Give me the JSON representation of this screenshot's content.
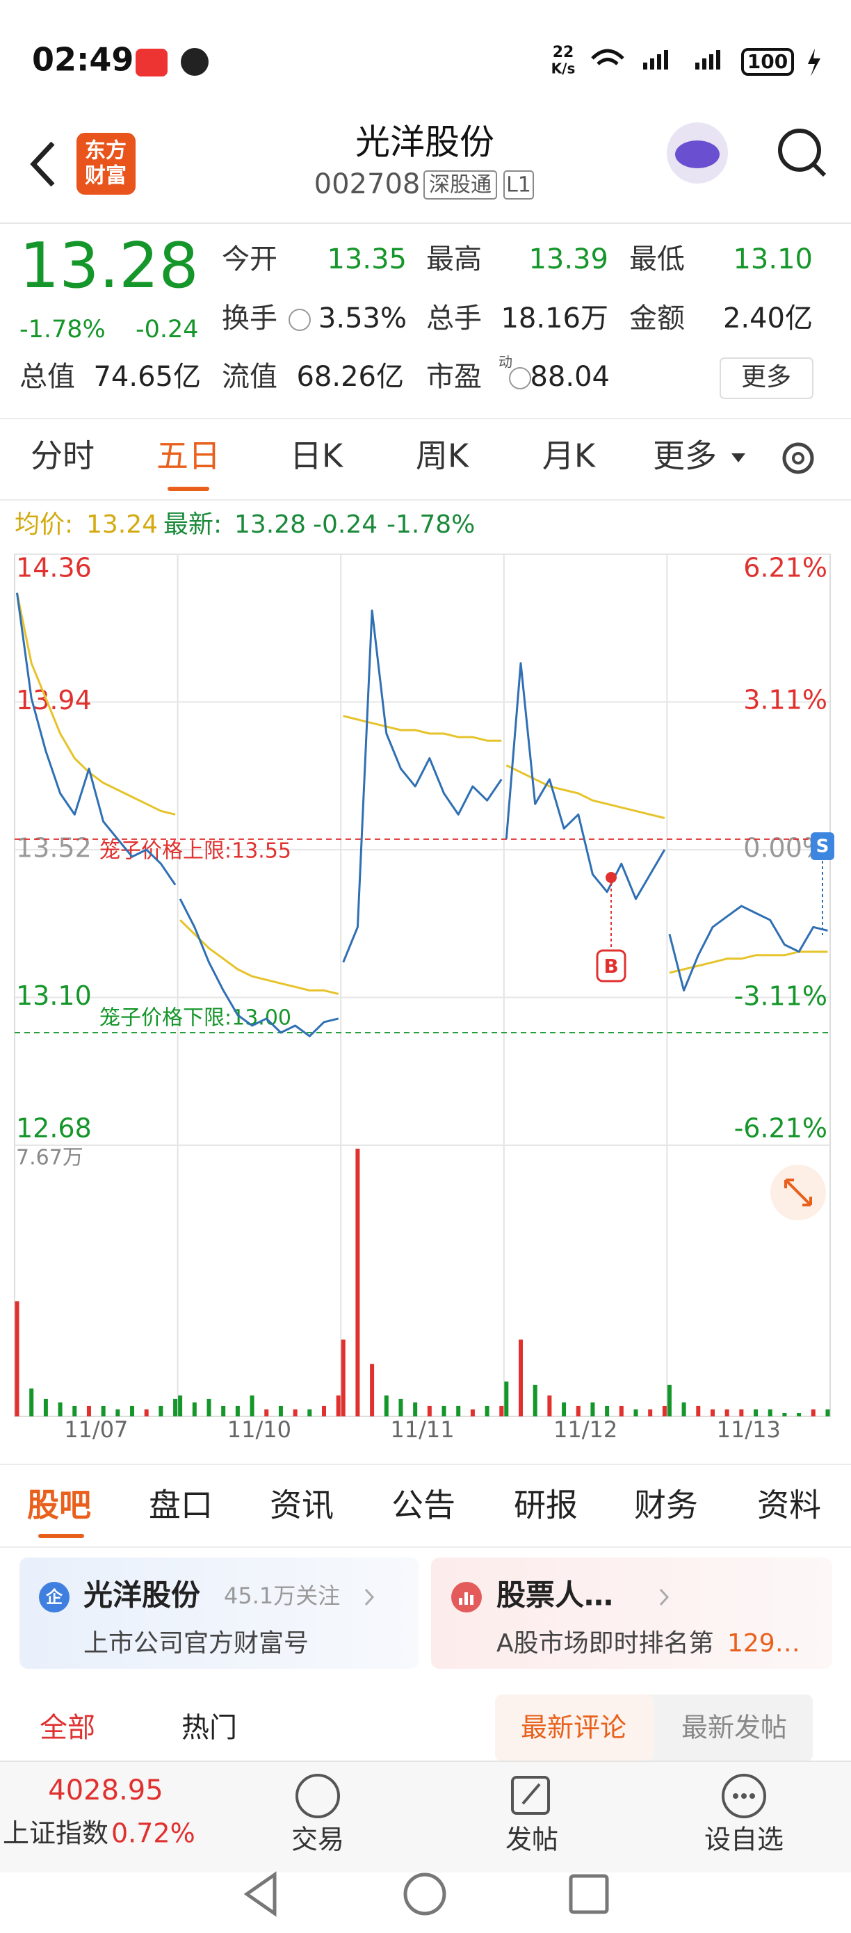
{
  "status": {
    "time": "02:49",
    "speed": "22",
    "speed_unit": "K/s",
    "battery": "100"
  },
  "header": {
    "logo": [
      "东方",
      "财富"
    ],
    "title": "光洋股份",
    "code": "002708",
    "tags": [
      "深股通",
      "L1"
    ]
  },
  "quote": {
    "price": "13.28",
    "change_pct": "-1.78%",
    "change": "-0.24",
    "stats": [
      [
        [
          "今开",
          "13.35"
        ],
        [
          "最高",
          "13.39"
        ],
        [
          "最低",
          "13.10"
        ]
      ],
      [
        [
          "换手",
          "3.53%"
        ],
        [
          "总手",
          "18.16万"
        ],
        [
          "金额",
          "2.40亿"
        ]
      ],
      [
        [
          "总值",
          "74.65亿"
        ],
        [
          "流值",
          "68.26亿"
        ],
        [
          "市盈",
          "88.04"
        ]
      ]
    ],
    "pe_sup": "动",
    "more": "更多"
  },
  "period_tabs": [
    "分时",
    "五日",
    "日K",
    "周K",
    "月K",
    "更多"
  ],
  "legend": {
    "avg_label": "均价:",
    "avg": "13.24",
    "latest_label": "最新:",
    "latest": "13.28",
    "change": "-0.24",
    "change_pct": "-1.78%"
  },
  "chart_data": {
    "type": "line",
    "categories": [
      "11/07",
      "11/10",
      "11/11",
      "11/12",
      "11/13"
    ],
    "ylim": [
      12.68,
      14.36
    ],
    "yticks": [
      14.36,
      13.94,
      13.52,
      {
        "value": 13.1,
        "label": "13.10"
      },
      12.68
    ],
    "ytick_colors": [
      "#e0312f",
      "#e0312f",
      "#999999",
      "#15962a",
      "#15962a"
    ],
    "y2lim": [
      -6.21,
      6.21
    ],
    "y2ticks": [
      {
        "value": 6.21,
        "label": "6.21%"
      },
      {
        "value": 3.11,
        "label": "3.11%"
      },
      {
        "value": 0,
        "label": "0.00%"
      },
      {
        "value": -3.11,
        "label": "-3.11%"
      },
      {
        "value": -6.21,
        "label": "-6.21%"
      }
    ],
    "limits": [
      {
        "label": "笼子价格上限:13.55",
        "value": 13.55,
        "color": "#e0312f"
      },
      {
        "label": "笼子价格下限:13.00",
        "value": 13.0,
        "color": "#15962a"
      }
    ],
    "price_color": "#2f6fb3",
    "avg_color": "#e6c32a",
    "price": [
      [
        14.25,
        13.95,
        13.8,
        13.68,
        13.62,
        13.75,
        13.6,
        13.55,
        13.5,
        13.52,
        13.48,
        13.42
      ],
      [
        13.38,
        13.3,
        13.2,
        13.12,
        13.05,
        13.02,
        13.04,
        13.0,
        13.02,
        12.99,
        13.03,
        13.04
      ],
      [
        13.2,
        13.3,
        14.2,
        13.85,
        13.75,
        13.7,
        13.78,
        13.68,
        13.62,
        13.7,
        13.66,
        13.72
      ],
      [
        13.55,
        14.05,
        13.65,
        13.72,
        13.58,
        13.62,
        13.45,
        13.4,
        13.48,
        13.38,
        13.45,
        13.52
      ],
      [
        13.28,
        13.12,
        13.22,
        13.3,
        13.33,
        13.36,
        13.34,
        13.32,
        13.25,
        13.23,
        13.3,
        13.29
      ]
    ],
    "avg": [
      [
        14.25,
        14.05,
        13.95,
        13.85,
        13.78,
        13.74,
        13.71,
        13.69,
        13.67,
        13.65,
        13.63,
        13.62
      ],
      [
        13.32,
        13.28,
        13.24,
        13.21,
        13.18,
        13.16,
        13.15,
        13.14,
        13.13,
        13.12,
        13.12,
        13.11
      ],
      [
        13.9,
        13.89,
        13.88,
        13.87,
        13.86,
        13.86,
        13.85,
        13.85,
        13.84,
        13.84,
        13.83,
        13.83
      ],
      [
        13.76,
        13.74,
        13.72,
        13.7,
        13.69,
        13.68,
        13.66,
        13.65,
        13.64,
        13.63,
        13.62,
        13.61
      ],
      [
        13.17,
        13.18,
        13.19,
        13.2,
        13.21,
        13.21,
        13.22,
        13.22,
        13.22,
        13.23,
        13.23,
        13.23
      ]
    ],
    "volume_ylim": [
      0,
      7.67
    ],
    "volume_tick": {
      "value": 7.67,
      "label": "7.67万"
    },
    "up_color": "#e0312f",
    "down_color": "#15962a",
    "volume": [
      [
        3.3,
        0.8,
        0.5,
        0.4,
        0.3,
        0.3,
        0.3,
        0.2,
        0.3,
        0.2,
        0.3,
        0.5
      ],
      [
        0.6,
        0.4,
        0.5,
        0.3,
        0.3,
        0.6,
        0.2,
        0.3,
        0.2,
        0.2,
        0.3,
        0.6
      ],
      [
        2.2,
        7.67,
        1.5,
        0.6,
        0.5,
        0.4,
        0.3,
        0.3,
        0.3,
        0.2,
        0.3,
        0.3
      ],
      [
        1.0,
        2.2,
        0.9,
        0.6,
        0.4,
        0.3,
        0.4,
        0.3,
        0.3,
        0.2,
        0.2,
        0.3
      ],
      [
        0.9,
        0.4,
        0.3,
        0.2,
        0.2,
        0.2,
        0.2,
        0.2,
        0.1,
        0.1,
        0.2,
        0.2
      ]
    ],
    "markers": [
      "B",
      "S"
    ]
  },
  "section_tabs": [
    "股吧",
    "盘口",
    "资讯",
    "公告",
    "研报",
    "财务",
    "资料"
  ],
  "cards": [
    {
      "icon": "企",
      "title": "光洋股份",
      "sub": "45.1万关注",
      "desc": "上市公司官方财富号"
    },
    {
      "title": "股票人…",
      "desc": "A股市场即时排名第",
      "desc_highlight": "129…"
    }
  ],
  "filters": [
    "全部",
    "热门"
  ],
  "sorts": [
    "最新评论",
    "最新发帖"
  ],
  "bottom": {
    "index_value": "4028.95",
    "index_name": "上证指数",
    "index_pct": "0.72%",
    "actions": [
      "交易",
      "发帖",
      "设自选"
    ]
  }
}
